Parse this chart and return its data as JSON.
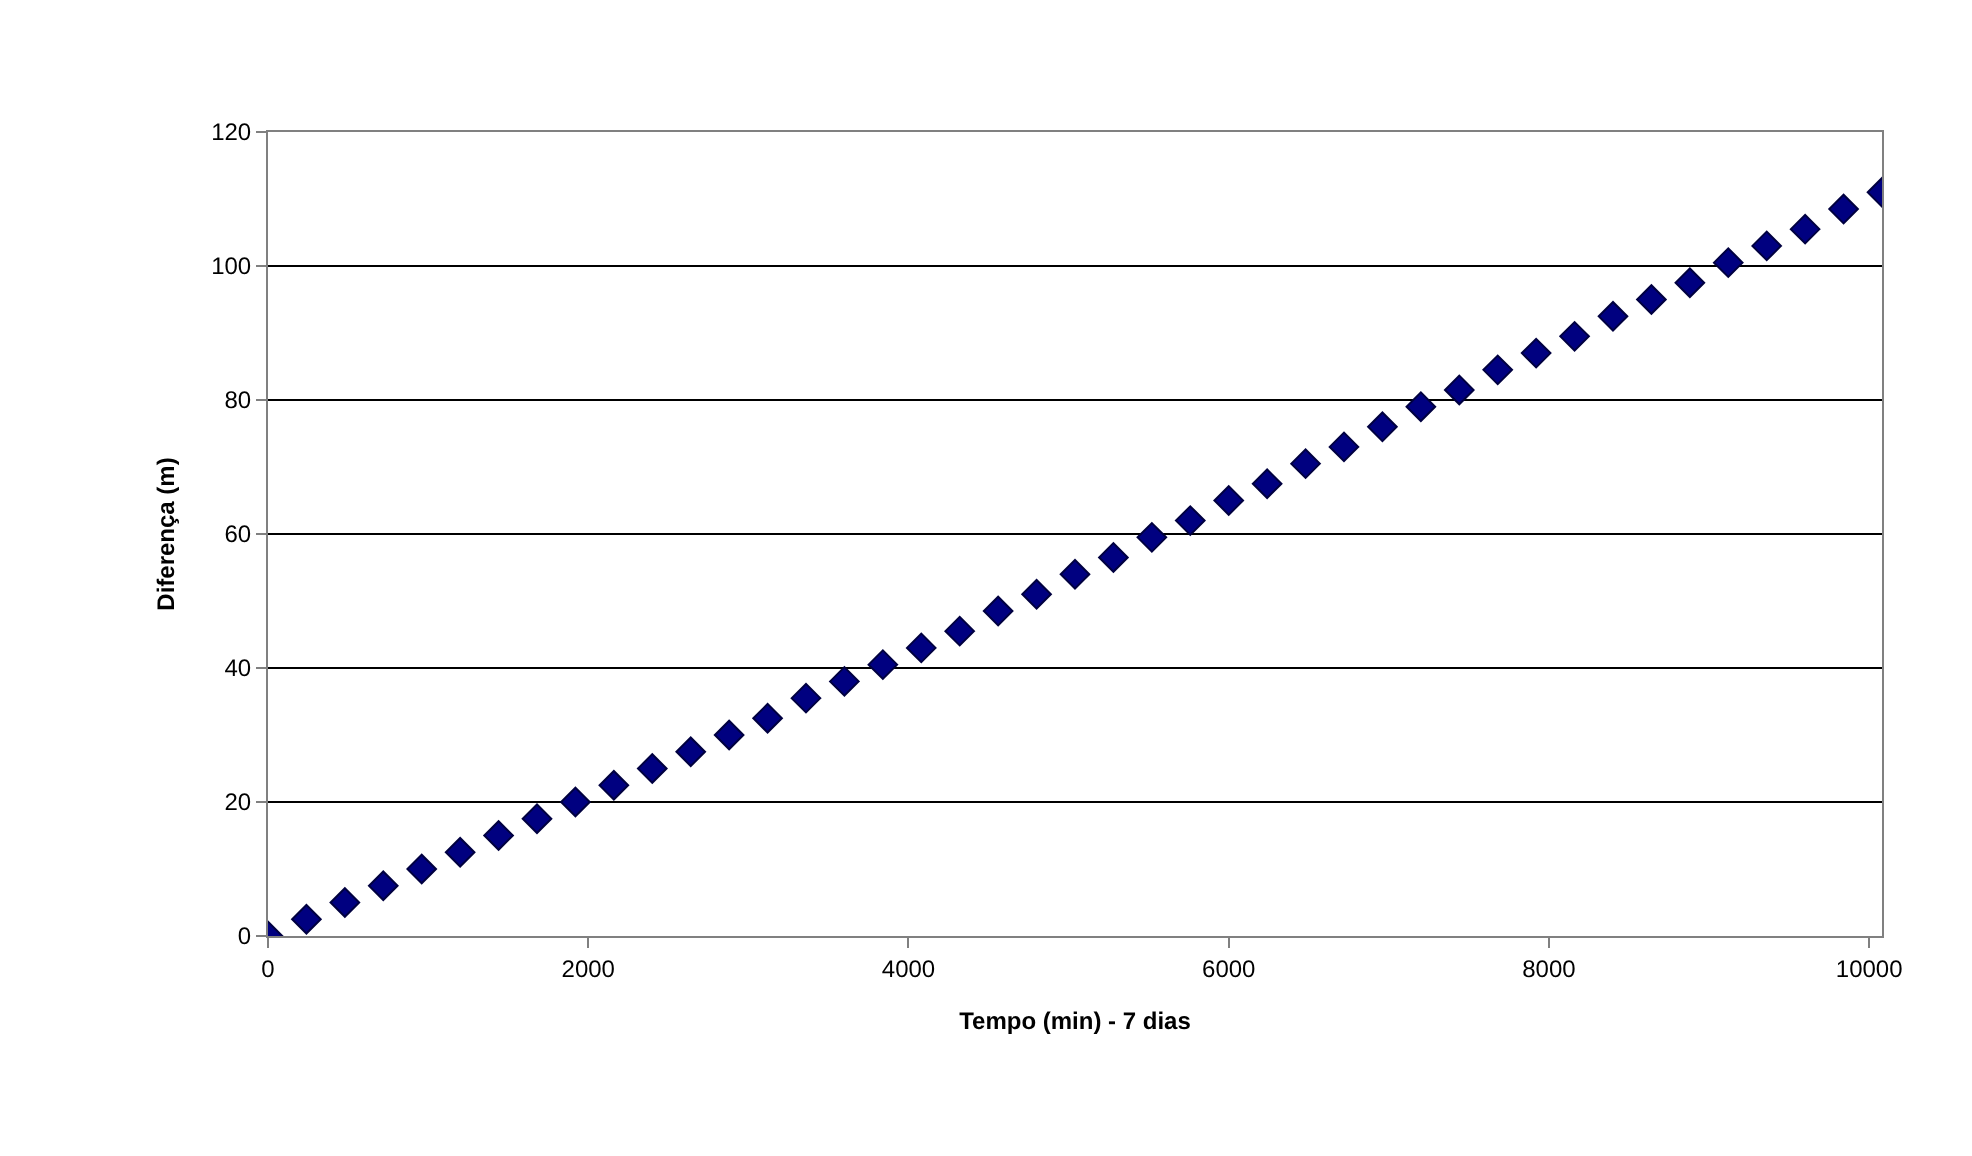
{
  "chart_data": {
    "type": "scatter",
    "xlabel": "Tempo (min) - 7 dias",
    "ylabel": "Diferença (m)",
    "x": [
      0,
      240,
      480,
      720,
      960,
      1200,
      1440,
      1680,
      1920,
      2160,
      2400,
      2640,
      2880,
      3120,
      3360,
      3600,
      3840,
      4080,
      4320,
      4560,
      4800,
      5040,
      5280,
      5520,
      5760,
      6000,
      6240,
      6480,
      6720,
      6960,
      7200,
      7440,
      7680,
      7920,
      8160,
      8400,
      8640,
      8880,
      9120,
      9360,
      9600,
      9840,
      10080
    ],
    "series": [
      {
        "color": "#000080",
        "values": [
          0,
          2.5,
          5,
          7.5,
          10,
          12.5,
          15,
          17.5,
          20,
          22.5,
          25,
          27.5,
          30,
          32.5,
          35.5,
          38,
          40.5,
          43,
          45.5,
          48.5,
          51,
          54,
          56.5,
          59.5,
          62,
          65,
          67.5,
          70.5,
          73,
          76,
          79,
          81.5,
          84.5,
          87,
          89.5,
          92.5,
          95,
          97.5,
          100.5,
          103,
          105.5,
          108.5,
          111
        ]
      }
    ],
    "xlim": [
      0,
      10080
    ],
    "xticks": [
      0,
      2000,
      4000,
      6000,
      8000,
      10000
    ],
    "ylim": [
      0,
      120
    ],
    "yticks": [
      0,
      20,
      40,
      60,
      80,
      100,
      120
    ],
    "grid": "y",
    "marker": "diamond",
    "legend": false
  }
}
